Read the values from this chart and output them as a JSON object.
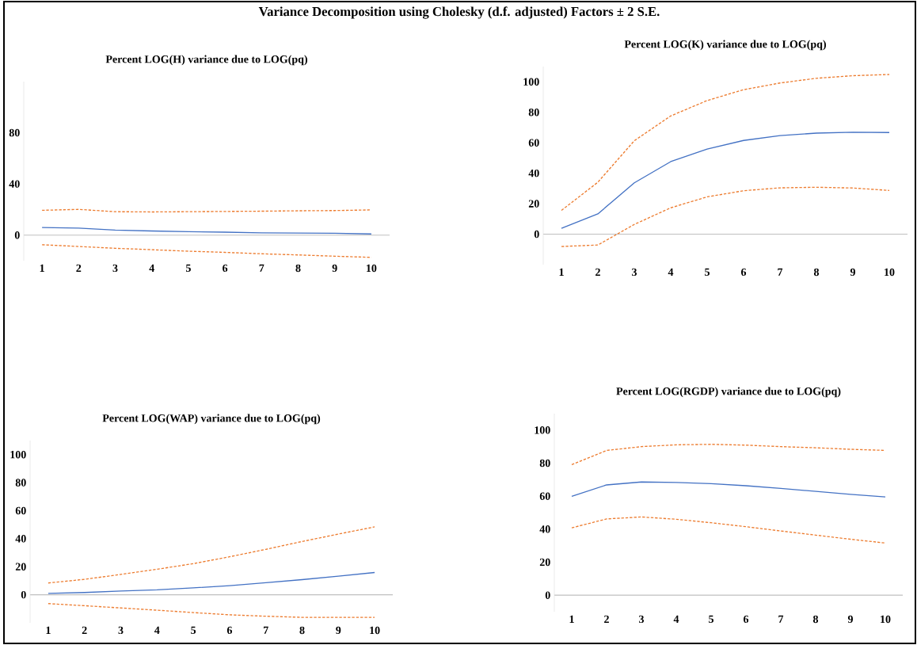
{
  "chart_data": [
    {
      "type": "line",
      "title": "Percent LOG(H) variance due to LOG(pq)",
      "annotations": [
        "Variance Decomposition using Cholesky (d.f. adjusted) Factors ± 2 S.E."
      ],
      "categories": [
        "1",
        "2",
        "3",
        "4",
        "5",
        "6",
        "7",
        "8",
        "9",
        "10"
      ],
      "ylim": [
        -20,
        120
      ],
      "yticks": [
        0,
        40,
        80
      ],
      "series": [
        {
          "color": "#4472c4",
          "line_style": "solid",
          "values": [
            5.9,
            5.5,
            3.9,
            3.2,
            2.7,
            2.3,
            1.8,
            1.6,
            1.4,
            0.9
          ]
        },
        {
          "color": "#ed7d31",
          "line_style": "dashed",
          "values": [
            19.4,
            20.1,
            18.3,
            18.1,
            18.3,
            18.5,
            18.7,
            19.0,
            19.2,
            19.7
          ]
        },
        {
          "color": "#ed7d31",
          "line_style": "dashed",
          "values": [
            -7.5,
            -8.9,
            -10.3,
            -11.4,
            -12.6,
            -13.5,
            -14.6,
            -15.5,
            -16.5,
            -17.4
          ]
        }
      ]
    },
    {
      "type": "line",
      "title": "Percent LOG(K) variance due to LOG(pq)",
      "categories": [
        "1",
        "2",
        "3",
        "4",
        "5",
        "6",
        "7",
        "8",
        "9",
        "10"
      ],
      "ylim": [
        -20,
        110
      ],
      "yticks": [
        0,
        20,
        40,
        60,
        80,
        100
      ],
      "series": [
        {
          "color": "#4472c4",
          "line_style": "solid",
          "values": [
            3.9,
            13.3,
            33.7,
            47.6,
            55.9,
            61.5,
            64.7,
            66.3,
            66.9,
            66.7
          ]
        },
        {
          "color": "#ed7d31",
          "line_style": "dashed",
          "values": [
            15.6,
            34.1,
            61.3,
            77.6,
            87.7,
            94.8,
            99.2,
            102.3,
            104.0,
            104.8
          ]
        },
        {
          "color": "#ed7d31",
          "line_style": "dashed",
          "values": [
            -8.1,
            -7.1,
            6.4,
            17.3,
            24.5,
            28.5,
            30.4,
            30.8,
            30.3,
            28.7
          ]
        }
      ]
    },
    {
      "type": "line",
      "title": "Percent LOG(WAP) variance due to LOG(pq)",
      "categories": [
        "1",
        "2",
        "3",
        "4",
        "5",
        "6",
        "7",
        "8",
        "9",
        "10"
      ],
      "ylim": [
        -20,
        110
      ],
      "yticks": [
        0,
        20,
        40,
        60,
        80,
        100
      ],
      "series": [
        {
          "color": "#4472c4",
          "line_style": "solid",
          "values": [
            1.0,
            1.6,
            2.7,
            3.5,
            4.9,
            6.5,
            8.6,
            10.8,
            13.3,
            15.9
          ]
        },
        {
          "color": "#ed7d31",
          "line_style": "dashed",
          "values": [
            8.4,
            11.0,
            14.5,
            18.2,
            22.2,
            27.1,
            32.4,
            38.0,
            43.3,
            48.4
          ]
        },
        {
          "color": "#ed7d31",
          "line_style": "dashed",
          "values": [
            -6.3,
            -7.8,
            -9.4,
            -11.0,
            -12.7,
            -14.3,
            -15.3,
            -16.1,
            -16.1,
            -16.1
          ]
        }
      ]
    },
    {
      "type": "line",
      "title": "Percent LOG(RGDP) variance due to LOG(pq)",
      "categories": [
        "1",
        "2",
        "3",
        "4",
        "5",
        "6",
        "7",
        "8",
        "9",
        "10"
      ],
      "ylim": [
        -10,
        110
      ],
      "yticks": [
        0,
        20,
        40,
        60,
        80,
        100
      ],
      "series": [
        {
          "color": "#4472c4",
          "line_style": "solid",
          "values": [
            59.9,
            66.8,
            68.6,
            68.3,
            67.6,
            66.3,
            64.7,
            62.9,
            61.1,
            59.5
          ]
        },
        {
          "color": "#ed7d31",
          "line_style": "dashed",
          "values": [
            79.1,
            87.7,
            90.0,
            91.1,
            91.4,
            90.9,
            90.0,
            89.3,
            88.4,
            87.7
          ]
        },
        {
          "color": "#ed7d31",
          "line_style": "dashed",
          "values": [
            40.8,
            46.2,
            47.4,
            46.0,
            43.9,
            41.5,
            38.9,
            36.4,
            33.9,
            31.6
          ]
        }
      ]
    }
  ]
}
